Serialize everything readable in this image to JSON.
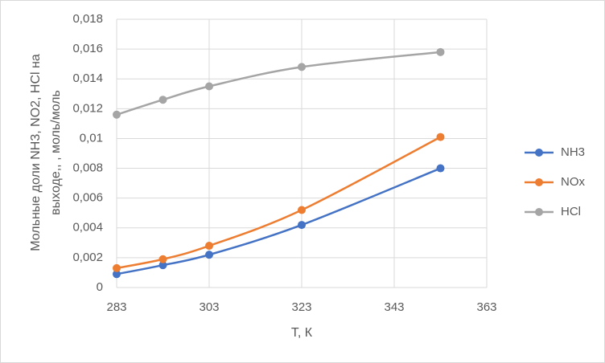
{
  "chart_data": {
    "type": "line",
    "x_label": "Т, К",
    "y_label": [
      "Мольные доли NH3, NO2, HCl на",
      "выходе,, , моль/моль"
    ],
    "x": [
      283,
      293,
      303,
      323,
      353
    ],
    "series": [
      {
        "name": "NH3",
        "color": "#4472c4",
        "values": [
          0.0009,
          0.0015,
          0.0022,
          0.0042,
          0.008
        ]
      },
      {
        "name": "NOx",
        "color": "#ed7d31",
        "values": [
          0.0013,
          0.0019,
          0.0028,
          0.0052,
          0.0101
        ]
      },
      {
        "name": "HCl",
        "color": "#a5a5a5",
        "values": [
          0.0116,
          0.0126,
          0.0135,
          0.0148,
          0.0158
        ]
      }
    ],
    "xlim": [
      283,
      363
    ],
    "xticks": [
      283,
      303,
      323,
      343,
      363
    ],
    "ylim": [
      0,
      0.018
    ],
    "yticks": [
      0,
      {
        "value": 0.002,
        "label": "0,002"
      },
      {
        "value": 0.004,
        "label": "0,004"
      },
      {
        "value": 0.006,
        "label": "0,006"
      },
      {
        "value": 0.008,
        "label": "0,008"
      },
      {
        "value": 0.01,
        "label": "0,01"
      },
      {
        "value": 0.012,
        "label": "0,012"
      },
      {
        "value": 0.014,
        "label": "0,014"
      },
      {
        "value": 0.016,
        "label": "0,016"
      },
      {
        "value": 0.018,
        "label": "0,018"
      }
    ],
    "grid": true,
    "smooth": true,
    "legend": "right"
  }
}
